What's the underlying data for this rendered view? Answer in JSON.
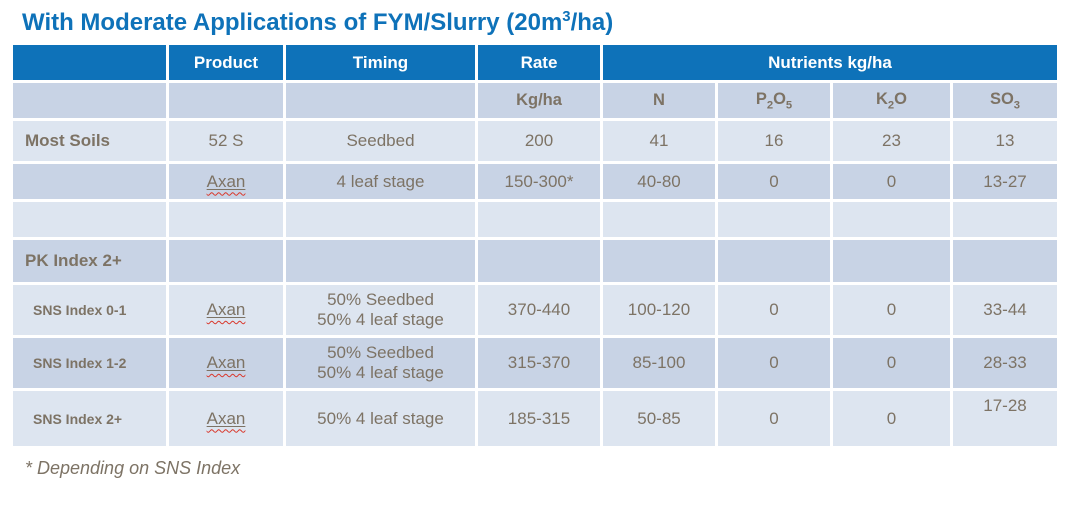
{
  "title": {
    "segments": [
      {
        "t": "With Moderate Applications of FYM/Slurry (20m"
      },
      {
        "t": "3",
        "sup": true
      },
      {
        "t": "/ha)"
      }
    ]
  },
  "colors": {
    "header_blue": "#0e72b9",
    "band_light": "#dde5f0",
    "band_dark": "#c8d3e5",
    "body_text": "#7d7365",
    "title_blue": "#0e72b9",
    "spellcheck_red": "#d9372b"
  },
  "table": {
    "header_row1": {
      "corner": "",
      "product": "Product",
      "timing": "Timing",
      "rate": "Rate",
      "nutrients": "Nutrients kg/ha"
    },
    "header_row2": {
      "rate_unit": "Kg/ha",
      "n": "N",
      "p2o5": {
        "segments": [
          {
            "t": "P"
          },
          {
            "t": "2",
            "sub": true
          },
          {
            "t": "O"
          },
          {
            "t": "5",
            "sub": true
          }
        ]
      },
      "k2o": {
        "segments": [
          {
            "t": "K"
          },
          {
            "t": "2",
            "sub": true
          },
          {
            "t": "O"
          }
        ]
      },
      "so3": {
        "segments": [
          {
            "t": "SO"
          },
          {
            "t": "3",
            "sub": true
          }
        ]
      }
    },
    "rows": [
      {
        "label": "Most Soils",
        "product": "52 S",
        "timing": "Seedbed",
        "rate": "200",
        "n": "41",
        "p2o5": "16",
        "k2o": "23",
        "so3": "13"
      },
      {
        "label": "",
        "product": "Axan",
        "timing": "4 leaf stage",
        "rate": "150-300*",
        "n": "40-80",
        "p2o5": "0",
        "k2o": "0",
        "so3": "13-27"
      },
      {
        "label": "",
        "product": "",
        "timing": "",
        "rate": "",
        "n": "",
        "p2o5": "",
        "k2o": "",
        "so3": ""
      },
      {
        "label": "PK Index 2+",
        "product": "",
        "timing": "",
        "rate": "",
        "n": "",
        "p2o5": "",
        "k2o": "",
        "so3": ""
      },
      {
        "label": "SNS Index 0-1",
        "product": "Axan",
        "timing": "50% Seedbed\n50% 4 leaf stage",
        "rate": "370-440",
        "n": "100-120",
        "p2o5": "0",
        "k2o": "0",
        "so3": "33-44"
      },
      {
        "label": "SNS Index 1-2",
        "product": "Axan",
        "timing": "50% Seedbed\n50% 4 leaf stage",
        "rate": "315-370",
        "n": "85-100",
        "p2o5": "0",
        "k2o": "0",
        "so3": "28-33"
      },
      {
        "label": "SNS Index 2+",
        "product": "Axan",
        "timing": "50% 4 leaf stage",
        "rate": "185-315",
        "n": "50-85",
        "p2o5": "0",
        "k2o": "0",
        "so3": "17-28"
      }
    ]
  },
  "footnote": "* Depending on SNS Index"
}
